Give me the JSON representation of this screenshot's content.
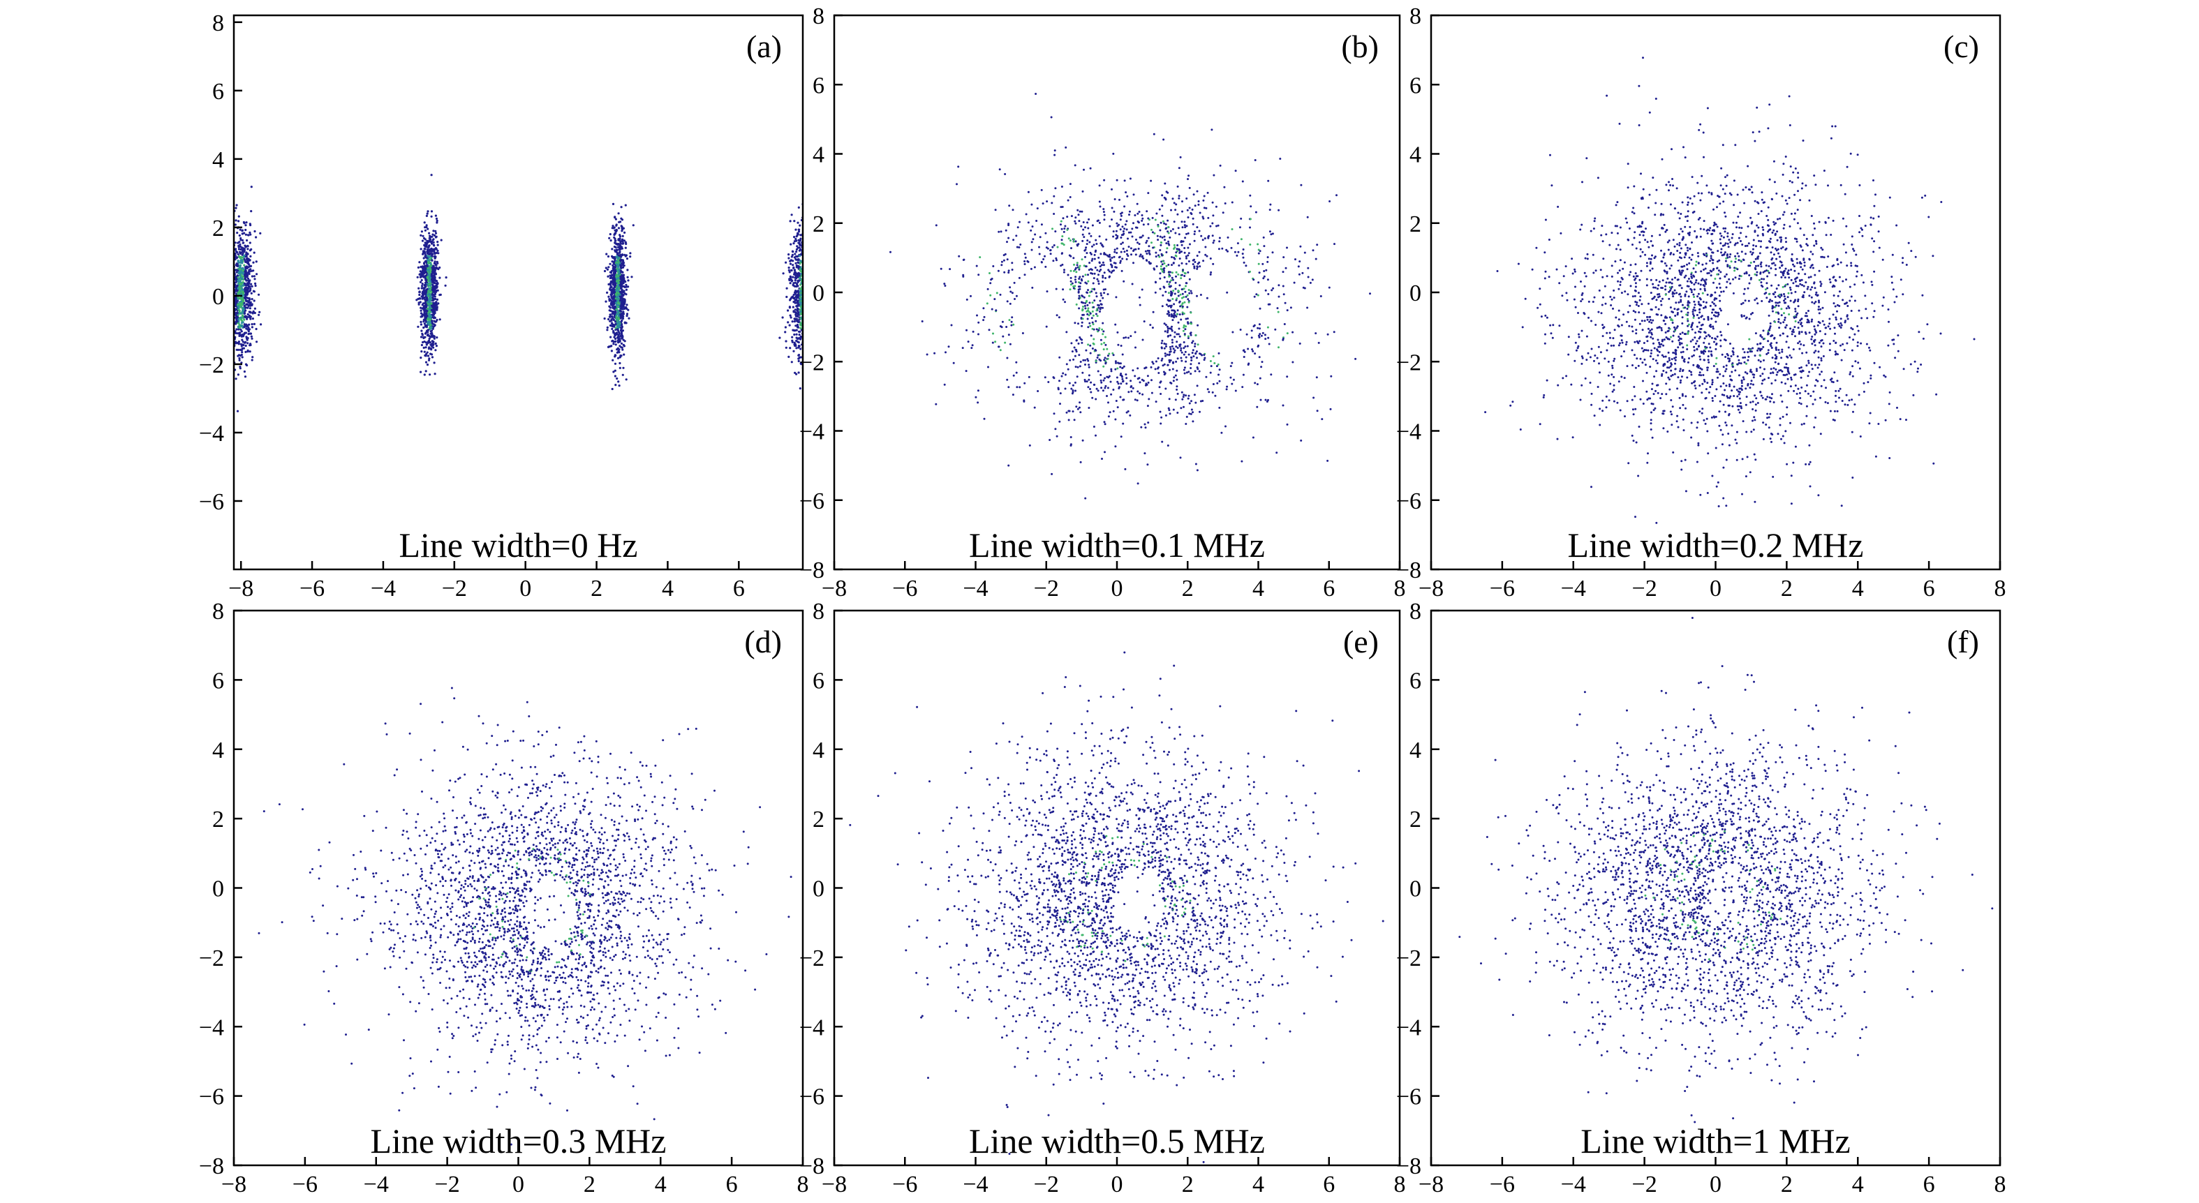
{
  "figure": {
    "panels": [
      {
        "id": "a",
        "panel_label": "(a)",
        "caption": "Line width=0 Hz"
      },
      {
        "id": "b",
        "panel_label": "(b)",
        "caption": "Line width=0.1 MHz"
      },
      {
        "id": "c",
        "panel_label": "(c)",
        "caption": "Line width=0.2 MHz"
      },
      {
        "id": "d",
        "panel_label": "(d)",
        "caption": "Line width=0.3 MHz"
      },
      {
        "id": "e",
        "panel_label": "(e)",
        "caption": "Line width=0.5 MHz"
      },
      {
        "id": "f",
        "panel_label": "(f)",
        "caption": "Line width=1 MHz"
      }
    ]
  },
  "chart_data": [
    {
      "type": "scatter",
      "title": "",
      "xlabel": "",
      "ylabel": "",
      "panel_label": "(a)",
      "annotation": "Line width=0 Hz",
      "linewidth_MHz": 0,
      "xlim": [
        -8.2,
        7.8
      ],
      "ylim": [
        -8,
        8.2
      ],
      "xticks": [
        -8,
        -6,
        -4,
        -2,
        0,
        2,
        4,
        6
      ],
      "yticks": [
        -6,
        -4,
        -2,
        0,
        2,
        4,
        6,
        8
      ],
      "xtick_labels": [
        "−8",
        "−6",
        "−4",
        "−2",
        "0",
        "2",
        "4",
        "6"
      ],
      "ytick_labels": [
        "−6",
        "−4",
        "−2",
        "0",
        "2",
        "4",
        "6",
        "8"
      ],
      "grid": false,
      "clusters": [
        {
          "x": -8.0,
          "y": 0.1,
          "sx": 0.18,
          "sy": 0.9
        },
        {
          "x": -2.7,
          "y": 0.1,
          "sx": 0.12,
          "sy": 0.9
        },
        {
          "x": 2.6,
          "y": 0.1,
          "sx": 0.12,
          "sy": 0.9
        },
        {
          "x": 7.8,
          "y": 0.1,
          "sx": 0.18,
          "sy": 0.9
        }
      ],
      "colors": {
        "sparse": "#1f1f8f",
        "dense": "#3fb56a"
      }
    },
    {
      "type": "scatter",
      "title": "",
      "xlabel": "",
      "ylabel": "",
      "panel_label": "(b)",
      "annotation": "Line width=0.1 MHz",
      "linewidth_MHz": 0.1,
      "xlim": [
        -8,
        8
      ],
      "ylim": [
        -8,
        8
      ],
      "xticks": [
        -8,
        -6,
        -4,
        -2,
        0,
        2,
        4,
        6,
        8
      ],
      "yticks": [
        -8,
        -6,
        -4,
        -2,
        0,
        2,
        4,
        6,
        8
      ],
      "xtick_labels": [
        "−8",
        "−6",
        "−4",
        "−2",
        "0",
        "2",
        "4",
        "6",
        "8"
      ],
      "ytick_labels": [
        "−8",
        "−6",
        "−4",
        "−2",
        "0",
        "2",
        "4",
        "6",
        "8"
      ],
      "grid": false,
      "cloud": {
        "center": [
          0.5,
          -0.3
        ],
        "radius_x": 4.8,
        "radius_y": 3.8
      },
      "dense_ridges_x": [
        -3.6,
        -1.0,
        1.8,
        4.2
      ],
      "colors": {
        "sparse": "#1f1f8f",
        "dense": "#3fb56a"
      }
    },
    {
      "type": "scatter",
      "title": "",
      "xlabel": "",
      "ylabel": "",
      "panel_label": "(c)",
      "annotation": "Line width=0.2 MHz",
      "linewidth_MHz": 0.2,
      "xlim": [
        -8,
        8
      ],
      "ylim": [
        -8,
        8
      ],
      "xticks": [
        -8,
        -6,
        -4,
        -2,
        0,
        2,
        4,
        6,
        8
      ],
      "yticks": [
        -8,
        -6,
        -4,
        -2,
        0,
        2,
        4,
        6,
        8
      ],
      "xtick_labels": [
        "−8",
        "−6",
        "−4",
        "−2",
        "0",
        "2",
        "4",
        "6",
        "8"
      ],
      "ytick_labels": [
        "−8",
        "−6",
        "−4",
        "−2",
        "0",
        "2",
        "4",
        "6",
        "8"
      ],
      "grid": false,
      "cloud": {
        "center": [
          0.4,
          -0.5
        ],
        "radius_x": 5.0,
        "radius_y": 4.5
      },
      "colors": {
        "sparse": "#1f1f8f",
        "dense": "#3fb56a"
      }
    },
    {
      "type": "scatter",
      "title": "",
      "xlabel": "",
      "ylabel": "",
      "panel_label": "(d)",
      "annotation": "Line width=0.3 MHz",
      "linewidth_MHz": 0.3,
      "xlim": [
        -8,
        8
      ],
      "ylim": [
        -8,
        8
      ],
      "xticks": [
        -8,
        -6,
        -4,
        -2,
        0,
        2,
        4,
        6,
        8
      ],
      "yticks": [
        -8,
        -6,
        -4,
        -2,
        0,
        2,
        4,
        6,
        8
      ],
      "xtick_labels": [
        "−8",
        "−6",
        "−4",
        "−2",
        "0",
        "2",
        "4",
        "6",
        "8"
      ],
      "ytick_labels": [
        "−8",
        "−6",
        "−4",
        "−2",
        "0",
        "2",
        "4",
        "6",
        "8"
      ],
      "grid": false,
      "cloud": {
        "center": [
          0.5,
          -0.6
        ],
        "radius_x": 5.0,
        "radius_y": 4.8
      },
      "colors": {
        "sparse": "#1f1f8f",
        "dense": "#3fb56a"
      }
    },
    {
      "type": "scatter",
      "title": "",
      "xlabel": "",
      "ylabel": "",
      "panel_label": "(e)",
      "annotation": "Line width=0.5 MHz",
      "linewidth_MHz": 0.5,
      "xlim": [
        -8,
        8
      ],
      "ylim": [
        -8,
        8
      ],
      "xticks": [
        -8,
        -6,
        -4,
        -2,
        0,
        2,
        4,
        6,
        8
      ],
      "yticks": [
        -8,
        -6,
        -4,
        -2,
        0,
        2,
        4,
        6,
        8
      ],
      "xtick_labels": [
        "−8",
        "−6",
        "−4",
        "−2",
        "0",
        "2",
        "4",
        "6",
        "8"
      ],
      "ytick_labels": [
        "−8",
        "−6",
        "−4",
        "−2",
        "0",
        "2",
        "4",
        "6",
        "8"
      ],
      "grid": false,
      "cloud": {
        "center": [
          0.2,
          -0.3
        ],
        "radius_x": 5.2,
        "radius_y": 5.0
      },
      "colors": {
        "sparse": "#1f1f8f",
        "dense": "#3fb56a"
      }
    },
    {
      "type": "scatter",
      "title": "",
      "xlabel": "",
      "ylabel": "",
      "panel_label": "(f)",
      "annotation": "Line width=1 MHz",
      "linewidth_MHz": 1,
      "xlim": [
        -8,
        8
      ],
      "ylim": [
        -8,
        8
      ],
      "xticks": [
        -8,
        -6,
        -4,
        -2,
        0,
        2,
        4,
        6,
        8
      ],
      "yticks": [
        -8,
        -6,
        -4,
        -2,
        0,
        2,
        4,
        6,
        8
      ],
      "xtick_labels": [
        "−8",
        "−6",
        "−4",
        "−2",
        "0",
        "2",
        "4",
        "6",
        "8"
      ],
      "ytick_labels": [
        "−8",
        "−6",
        "−4",
        "−2",
        "0",
        "2",
        "4",
        "6",
        "8"
      ],
      "grid": false,
      "cloud": {
        "center": [
          0.0,
          -0.2
        ],
        "radius_x": 5.2,
        "radius_y": 5.0
      },
      "colors": {
        "sparse": "#1f1f8f",
        "dense": "#3fb56a"
      }
    }
  ]
}
